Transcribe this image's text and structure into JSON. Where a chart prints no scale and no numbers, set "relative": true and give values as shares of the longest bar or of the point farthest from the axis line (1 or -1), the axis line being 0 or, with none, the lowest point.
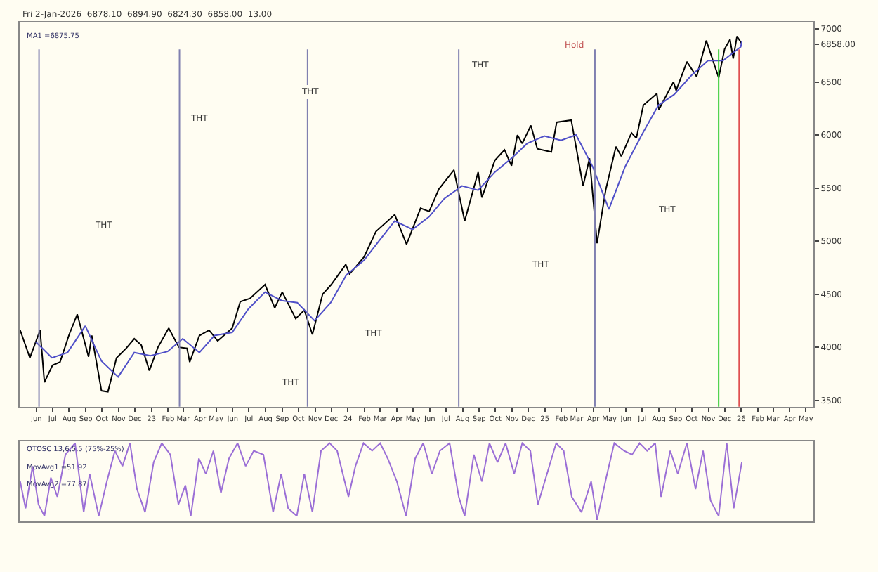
{
  "chart_data": [
    {
      "type": "line",
      "title": "Fri 2-Jan-2026  6878.10  6894.90  6824.30  6858.00  13.00",
      "xlim": [
        "2022-05-01",
        "2026-05-15"
      ],
      "ylim": [
        3440,
        7060
      ],
      "yticks": [
        3500,
        4000,
        4500,
        5000,
        5500,
        6000,
        6500,
        7000,
        {
          "value": 6858,
          "label": "6858.00"
        }
      ],
      "xticks": [
        {
          "value": "2022-06-01",
          "label": "Jun"
        },
        {
          "value": "2022-07-01",
          "label": "Jul"
        },
        {
          "value": "2022-08-01",
          "label": "Aug"
        },
        {
          "value": "2022-09-01",
          "label": "Sep"
        },
        {
          "value": "2022-10-01",
          "label": "Oct"
        },
        {
          "value": "2022-11-01",
          "label": "Nov"
        },
        {
          "value": "2022-12-01",
          "label": "Dec"
        },
        {
          "value": "2023-01-01",
          "label": "23"
        },
        {
          "value": "2023-02-01",
          "label": "Feb"
        },
        {
          "value": "2023-03-01",
          "label": "Mar"
        },
        {
          "value": "2023-04-01",
          "label": "Apr"
        },
        {
          "value": "2023-05-01",
          "label": "May"
        },
        {
          "value": "2023-06-01",
          "label": "Jun"
        },
        {
          "value": "2023-07-01",
          "label": "Jul"
        },
        {
          "value": "2023-08-01",
          "label": "Aug"
        },
        {
          "value": "2023-09-01",
          "label": "Sep"
        },
        {
          "value": "2023-10-01",
          "label": "Oct"
        },
        {
          "value": "2023-11-01",
          "label": "Nov"
        },
        {
          "value": "2023-12-01",
          "label": "Dec"
        },
        {
          "value": "2024-01-01",
          "label": "24"
        },
        {
          "value": "2024-02-01",
          "label": "Feb"
        },
        {
          "value": "2024-03-01",
          "label": "Mar"
        },
        {
          "value": "2024-04-01",
          "label": "Apr"
        },
        {
          "value": "2024-05-01",
          "label": "May"
        },
        {
          "value": "2024-06-01",
          "label": "Jun"
        },
        {
          "value": "2024-07-01",
          "label": "Jul"
        },
        {
          "value": "2024-08-01",
          "label": "Aug"
        },
        {
          "value": "2024-09-01",
          "label": "Sep"
        },
        {
          "value": "2024-10-01",
          "label": "Oct"
        },
        {
          "value": "2024-11-01",
          "label": "Nov"
        },
        {
          "value": "2024-12-01",
          "label": "Dec"
        },
        {
          "value": "2025-01-01",
          "label": "25"
        },
        {
          "value": "2025-02-01",
          "label": "Feb"
        },
        {
          "value": "2025-03-01",
          "label": "Mar"
        },
        {
          "value": "2025-04-01",
          "label": "Apr"
        },
        {
          "value": "2025-05-01",
          "label": "May"
        },
        {
          "value": "2025-06-01",
          "label": "Jun"
        },
        {
          "value": "2025-07-01",
          "label": "Jul"
        },
        {
          "value": "2025-08-01",
          "label": "Aug"
        },
        {
          "value": "2025-09-01",
          "label": "Sep"
        },
        {
          "value": "2025-10-01",
          "label": "Oct"
        },
        {
          "value": "2025-11-01",
          "label": "Nov"
        },
        {
          "value": "2025-12-01",
          "label": "Dec"
        },
        {
          "value": "2026-01-01",
          "label": "26"
        },
        {
          "value": "2026-02-01",
          "label": "Feb"
        },
        {
          "value": "2026-03-01",
          "label": "Mar"
        },
        {
          "value": "2026-04-01",
          "label": "Apr"
        },
        {
          "value": "2026-05-01",
          "label": "May"
        }
      ],
      "grid": false,
      "legend": false,
      "marker": "none",
      "line_style": "solid",
      "series": [
        {
          "color": "#000000",
          "x": [
            "2022-05-02",
            "2022-05-20",
            "2022-06-08",
            "2022-06-16",
            "2022-07-01",
            "2022-07-15",
            "2022-08-01",
            "2022-08-16",
            "2022-09-06",
            "2022-09-12",
            "2022-09-30",
            "2022-10-12",
            "2022-10-28",
            "2022-11-15",
            "2022-11-30",
            "2022-12-13",
            "2022-12-28",
            "2023-01-13",
            "2023-02-02",
            "2023-02-21",
            "2023-03-08",
            "2023-03-13",
            "2023-03-31",
            "2023-04-18",
            "2023-05-04",
            "2023-05-31",
            "2023-06-15",
            "2023-07-03",
            "2023-07-31",
            "2023-08-18",
            "2023-09-01",
            "2023-09-26",
            "2023-10-12",
            "2023-10-27",
            "2023-11-15",
            "2023-12-01",
            "2023-12-28",
            "2024-01-04",
            "2024-01-31",
            "2024-02-22",
            "2024-03-28",
            "2024-04-19",
            "2024-05-15",
            "2024-05-31",
            "2024-06-18",
            "2024-07-16",
            "2024-08-05",
            "2024-08-30",
            "2024-09-06",
            "2024-09-30",
            "2024-10-18",
            "2024-10-31",
            "2024-11-11",
            "2024-11-20",
            "2024-12-06",
            "2024-12-18",
            "2025-01-13",
            "2025-01-23",
            "2025-02-19",
            "2025-03-13",
            "2025-03-25",
            "2025-04-08",
            "2025-04-24",
            "2025-05-13",
            "2025-05-23",
            "2025-06-11",
            "2025-06-20",
            "2025-07-03",
            "2025-07-28",
            "2025-08-01",
            "2025-08-28",
            "2025-09-02",
            "2025-09-22",
            "2025-10-10",
            "2025-10-28",
            "2025-11-20",
            "2025-12-01",
            "2025-12-11",
            "2025-12-17",
            "2025-12-24",
            "2026-01-02"
          ],
          "values": [
            4160,
            3900,
            4160,
            3670,
            3830,
            3860,
            4120,
            4310,
            3910,
            4110,
            3590,
            3580,
            3900,
            3990,
            4080,
            4020,
            3780,
            4000,
            4180,
            4000,
            3990,
            3860,
            4110,
            4160,
            4060,
            4180,
            4430,
            4460,
            4590,
            4370,
            4520,
            4270,
            4350,
            4120,
            4500,
            4590,
            4780,
            4690,
            4850,
            5090,
            5250,
            4970,
            5310,
            5280,
            5490,
            5670,
            5190,
            5650,
            5410,
            5760,
            5860,
            5710,
            6000,
            5920,
            6090,
            5870,
            5840,
            6120,
            6140,
            5520,
            5780,
            4980,
            5480,
            5890,
            5800,
            6020,
            5970,
            6280,
            6390,
            6240,
            6500,
            6420,
            6690,
            6550,
            6890,
            6540,
            6810,
            6900,
            6720,
            6930,
            6860
          ]
        },
        {
          "color": "#5050c8",
          "x": [
            "2022-05-31",
            "2022-06-30",
            "2022-07-29",
            "2022-08-31",
            "2022-09-30",
            "2022-10-31",
            "2022-11-30",
            "2022-12-30",
            "2023-01-31",
            "2023-02-28",
            "2023-03-31",
            "2023-04-28",
            "2023-05-31",
            "2023-06-30",
            "2023-07-31",
            "2023-08-31",
            "2023-09-29",
            "2023-10-31",
            "2023-11-30",
            "2023-12-29",
            "2024-01-31",
            "2024-02-29",
            "2024-03-28",
            "2024-04-30",
            "2024-05-31",
            "2024-06-28",
            "2024-07-31",
            "2024-08-30",
            "2024-09-30",
            "2024-10-31",
            "2024-11-29",
            "2024-12-31",
            "2025-01-31",
            "2025-02-28",
            "2025-03-31",
            "2025-04-30",
            "2025-05-30",
            "2025-06-30",
            "2025-07-31",
            "2025-08-29",
            "2025-09-30",
            "2025-10-31",
            "2025-11-28",
            "2025-12-31",
            "2026-01-02"
          ],
          "values": [
            4050,
            3900,
            3950,
            4200,
            3870,
            3720,
            3950,
            3920,
            3960,
            4080,
            3950,
            4110,
            4140,
            4360,
            4520,
            4440,
            4420,
            4250,
            4420,
            4680,
            4820,
            5010,
            5190,
            5110,
            5230,
            5400,
            5520,
            5480,
            5650,
            5780,
            5920,
            5990,
            5950,
            6000,
            5700,
            5300,
            5700,
            6000,
            6280,
            6380,
            6560,
            6700,
            6700,
            6830,
            6880
          ]
        }
      ],
      "ref_lines": [
        {
          "axis": "x",
          "value": "2022-06-06",
          "color": "#8080b0"
        },
        {
          "axis": "x",
          "value": "2023-02-22",
          "color": "#8080b0"
        },
        {
          "axis": "x",
          "value": "2023-10-18",
          "color": "#8080b0"
        },
        {
          "axis": "x",
          "value": "2024-07-25",
          "color": "#8080b0"
        },
        {
          "axis": "x",
          "value": "2025-04-04",
          "color": "#8080b0"
        },
        {
          "axis": "x",
          "value": "2025-11-20",
          "color": "#33cc33"
        },
        {
          "axis": "x",
          "value": "2025-12-28",
          "color": "#e05050"
        }
      ],
      "annotations": [
        "MA1 =6875.75",
        "THT",
        "THT",
        "THT",
        "THT",
        "THT",
        "THT",
        "THT",
        "THT",
        "Hold"
      ]
    },
    {
      "type": "line",
      "relative": true,
      "tick_labels": false,
      "grid": false,
      "legend": false,
      "marker": "none",
      "xlim": [
        "2022-05-01",
        "2026-05-15"
      ],
      "series": [
        {
          "color": "#9b6fd6",
          "x": [
            "2022-05-02",
            "2022-05-12",
            "2022-05-25",
            "2022-06-05",
            "2022-06-16",
            "2022-06-28",
            "2022-07-10",
            "2022-07-25",
            "2022-08-12",
            "2022-08-28",
            "2022-09-08",
            "2022-09-25",
            "2022-10-10",
            "2022-10-25",
            "2022-11-08",
            "2022-11-22",
            "2022-12-05",
            "2022-12-20",
            "2023-01-05",
            "2023-01-20",
            "2023-02-05",
            "2023-02-20",
            "2023-03-05",
            "2023-03-15",
            "2023-03-30",
            "2023-04-12",
            "2023-04-26",
            "2023-05-10",
            "2023-05-25",
            "2023-06-10",
            "2023-06-25",
            "2023-07-10",
            "2023-07-28",
            "2023-08-15",
            "2023-08-30",
            "2023-09-12",
            "2023-09-28",
            "2023-10-12",
            "2023-10-27",
            "2023-11-12",
            "2023-11-28",
            "2023-12-12",
            "2024-01-02",
            "2024-01-15",
            "2024-01-30",
            "2024-02-15",
            "2024-03-01",
            "2024-03-15",
            "2024-04-01",
            "2024-04-18",
            "2024-05-05",
            "2024-05-20",
            "2024-06-05",
            "2024-06-20",
            "2024-07-08",
            "2024-07-25",
            "2024-08-05",
            "2024-08-22",
            "2024-09-06",
            "2024-09-20",
            "2024-10-05",
            "2024-10-20",
            "2024-11-05",
            "2024-11-20",
            "2024-12-05",
            "2024-12-19",
            "2025-01-05",
            "2025-01-22",
            "2025-02-05",
            "2025-02-20",
            "2025-03-10",
            "2025-03-28",
            "2025-04-08",
            "2025-04-25",
            "2025-05-10",
            "2025-05-28",
            "2025-06-12",
            "2025-06-26",
            "2025-07-10",
            "2025-07-25",
            "2025-08-05",
            "2025-08-22",
            "2025-09-05",
            "2025-09-22",
            "2025-10-08",
            "2025-10-22",
            "2025-11-05",
            "2025-11-20",
            "2025-12-05",
            "2025-12-18",
            "2026-01-02"
          ],
          "values": [
            0.5,
            0.15,
            0.7,
            0.2,
            0.05,
            0.55,
            0.3,
            0.85,
            1.0,
            0.1,
            0.6,
            0.05,
            0.5,
            0.9,
            0.7,
            1.0,
            0.4,
            0.1,
            0.75,
            1.0,
            0.85,
            0.2,
            0.45,
            0.05,
            0.8,
            0.6,
            0.9,
            0.35,
            0.8,
            1.0,
            0.7,
            0.9,
            0.85,
            0.1,
            0.6,
            0.15,
            0.05,
            0.6,
            0.1,
            0.9,
            1.0,
            0.9,
            0.3,
            0.7,
            1.0,
            0.9,
            1.0,
            0.8,
            0.5,
            0.05,
            0.8,
            1.0,
            0.6,
            0.9,
            1.0,
            0.3,
            0.05,
            0.85,
            0.5,
            1.0,
            0.75,
            1.0,
            0.6,
            1.0,
            0.9,
            0.2,
            0.6,
            1.0,
            0.9,
            0.3,
            0.1,
            0.5,
            0.0,
            0.55,
            1.0,
            0.9,
            0.85,
            1.0,
            0.9,
            1.0,
            0.3,
            0.9,
            0.6,
            1.0,
            0.4,
            0.9,
            0.25,
            0.05,
            1.0,
            0.15,
            0.75
          ]
        }
      ],
      "annotations": [
        "OTOSC 13,6,5,5 (75%-25%)",
        "MovAvg1 =51.92",
        "MovAvg2 =77.87"
      ]
    }
  ]
}
